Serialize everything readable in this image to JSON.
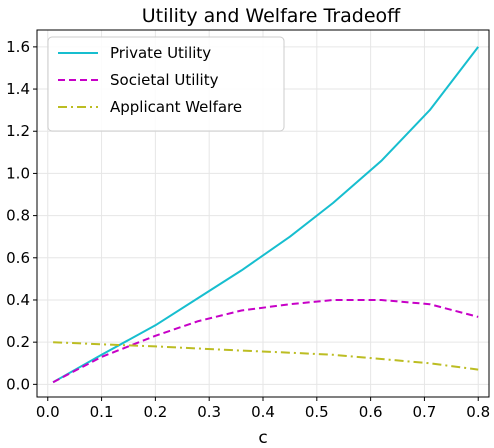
{
  "chart_data": {
    "type": "line",
    "title": "Utility and Welfare Tradeoff",
    "xlabel": "c",
    "ylabel": "",
    "xlim": [
      -0.02,
      0.82
    ],
    "ylim": [
      -0.06,
      1.68
    ],
    "xticks": [
      0.0,
      0.1,
      0.2,
      0.3,
      0.4,
      0.5,
      0.6,
      0.7,
      0.8
    ],
    "yticks": [
      0.0,
      0.2,
      0.4,
      0.6,
      0.8,
      1.0,
      1.2,
      1.4,
      1.6
    ],
    "xtick_labels": [
      "0.0",
      "0.1",
      "0.2",
      "0.3",
      "0.4",
      "0.5",
      "0.6",
      "0.7",
      "0.8"
    ],
    "ytick_labels": [
      "0.0",
      "0.2",
      "0.4",
      "0.6",
      "0.8",
      "1.0",
      "1.2",
      "1.4",
      "1.6"
    ],
    "grid": true,
    "legend_position": "top-left",
    "series": [
      {
        "name": "Private Utility",
        "color": "#17becf",
        "linestyle": "solid",
        "x": [
          0.01,
          0.1,
          0.2,
          0.28,
          0.36,
          0.45,
          0.53,
          0.62,
          0.71,
          0.8
        ],
        "y": [
          0.01,
          0.14,
          0.28,
          0.41,
          0.54,
          0.7,
          0.86,
          1.06,
          1.3,
          1.6
        ]
      },
      {
        "name": "Societal Utility",
        "color": "#c700c7",
        "linestyle": "dashed",
        "x": [
          0.01,
          0.1,
          0.2,
          0.28,
          0.36,
          0.45,
          0.53,
          0.62,
          0.71,
          0.8
        ],
        "y": [
          0.01,
          0.13,
          0.23,
          0.3,
          0.35,
          0.38,
          0.4,
          0.4,
          0.38,
          0.32
        ]
      },
      {
        "name": "Applicant Welfare",
        "color": "#bcbd22",
        "linestyle": "dashdot",
        "x": [
          0.01,
          0.1,
          0.2,
          0.28,
          0.36,
          0.45,
          0.53,
          0.62,
          0.71,
          0.8
        ],
        "y": [
          0.2,
          0.19,
          0.18,
          0.17,
          0.16,
          0.15,
          0.14,
          0.12,
          0.1,
          0.07
        ]
      }
    ]
  }
}
